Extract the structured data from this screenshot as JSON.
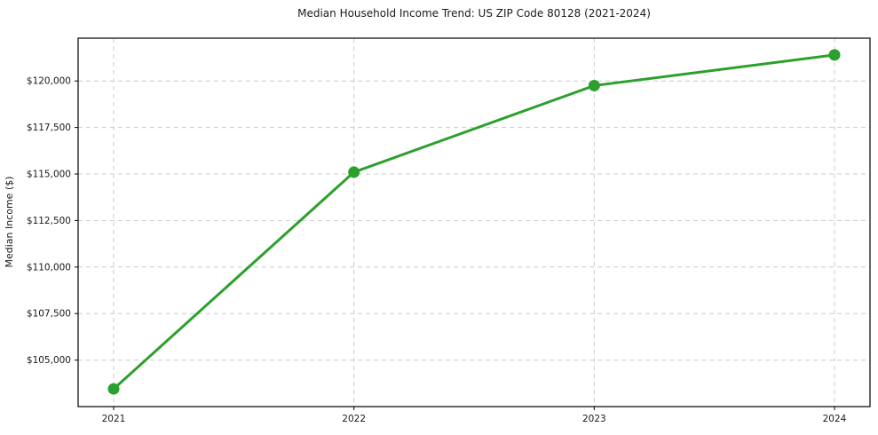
{
  "figure": {
    "background": "#ffffff"
  },
  "chart_data": {
    "type": "line",
    "title": "Median Household Income Trend: US ZIP Code 80128 (2021-2024)",
    "xlabel": "",
    "ylabel": "Median Income ($)",
    "x": [
      "2021",
      "2022",
      "2023",
      "2024"
    ],
    "series": [
      {
        "name": "Median Household Income",
        "values": [
          103450,
          115100,
          119750,
          121400
        ]
      }
    ],
    "ylim": [
      102500,
      122300
    ],
    "yticks": [
      105000,
      107500,
      110000,
      112500,
      115000,
      117500,
      120000
    ],
    "ytick_labels": [
      "$105,000",
      "$107,500",
      "$110,000",
      "$112,500",
      "$115,000",
      "$117,500",
      "$120,000"
    ],
    "grid": true,
    "grid_style": "dashed",
    "legend_position": "none",
    "colors": {
      "line": "#2ca02c",
      "marker": "#2ca02c",
      "grid": "#cccccc",
      "spine": "#000000",
      "text": "#1a1a1a",
      "plot_background": "#ffffff"
    }
  }
}
